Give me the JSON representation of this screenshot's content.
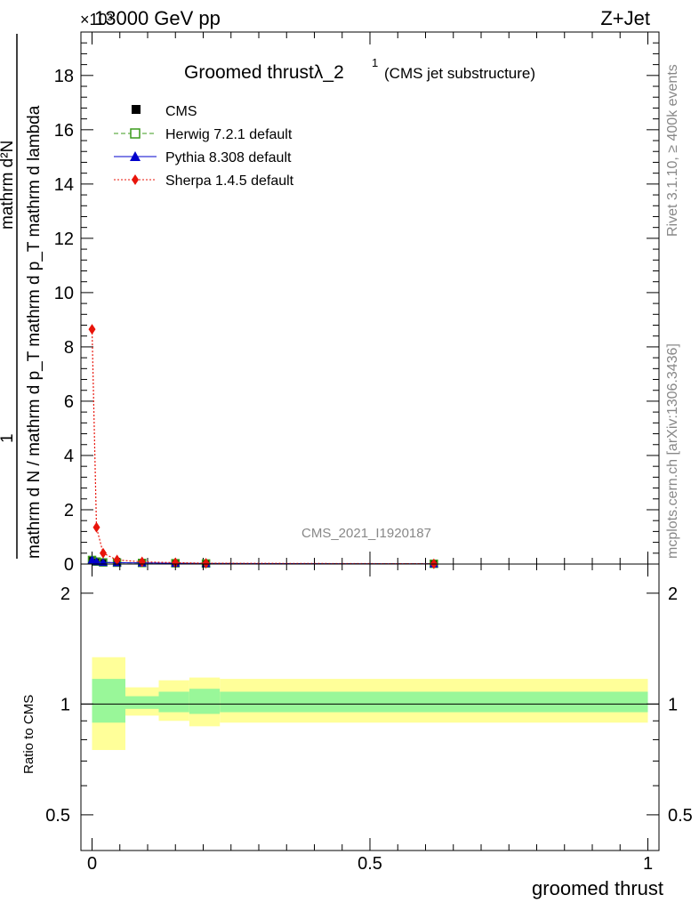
{
  "header": {
    "energy": "13000 GeV pp",
    "process": "Z+Jet",
    "exponent": "×10³"
  },
  "side_labels": {
    "rivet": "Rivet 3.1.10, ≥ 400k events",
    "mcplots": "mcplots.cern.ch [arXiv:1306.3436]"
  },
  "watermark": "CMS_2021_I1920187",
  "chart_data": [
    {
      "type": "line",
      "title": "Groomed thrustλ_2",
      "title_sup": "1",
      "subtitle": "(CMS jet substructure)",
      "ylabel_num": "1",
      "ylabel_den": "mathrm d N / mathrm d p_T mathrm d p_T mathrm d lambda",
      "ylabel_top": "mathrm d²N",
      "xlabel": "groomed thrust",
      "xlim": [
        -0.02,
        1.02
      ],
      "ylim": [
        0,
        19.6
      ],
      "y_unit_exponent": 3,
      "yticks": [
        0,
        2,
        4,
        6,
        8,
        10,
        12,
        14,
        16,
        18
      ],
      "legend": [
        {
          "name": "CMS",
          "color": "#000000",
          "style": "points",
          "marker": "square"
        },
        {
          "name": "Herwig 7.2.1 default",
          "color": "#3c9b1c",
          "style": "dashed",
          "marker": "open-square"
        },
        {
          "name": "Pythia 8.308 default",
          "color": "#0000cc",
          "style": "solid",
          "marker": "triangle"
        },
        {
          "name": "Sherpa 1.4.5 default",
          "color": "#e8140a",
          "style": "dotted",
          "marker": "diamond"
        }
      ],
      "series": [
        {
          "name": "CMS",
          "x": [
            0.0,
            0.008,
            0.02,
            0.045,
            0.09,
            0.15,
            0.205,
            0.615
          ],
          "y": [
            0.15,
            0.09,
            0.06,
            0.05,
            0.04,
            0.03,
            0.02,
            0.01
          ]
        },
        {
          "name": "Herwig 7.2.1 default",
          "x": [
            0.0,
            0.008,
            0.02,
            0.045,
            0.09,
            0.15,
            0.205,
            0.615
          ],
          "y": [
            0.15,
            0.09,
            0.06,
            0.05,
            0.04,
            0.03,
            0.02,
            0.01
          ]
        },
        {
          "name": "Pythia 8.308 default",
          "x": [
            0.0,
            0.008,
            0.02,
            0.045,
            0.09,
            0.15,
            0.205,
            0.615
          ],
          "y": [
            0.15,
            0.09,
            0.06,
            0.05,
            0.04,
            0.03,
            0.02,
            0.01
          ]
        },
        {
          "name": "Sherpa 1.4.5 default",
          "x": [
            0.0,
            0.008,
            0.02,
            0.045,
            0.09,
            0.15,
            0.205,
            0.615
          ],
          "y": [
            8.65,
            1.35,
            0.4,
            0.15,
            0.08,
            0.05,
            0.03,
            0.01
          ]
        }
      ]
    },
    {
      "type": "area",
      "ylabel": "Ratio to CMS",
      "xlim": [
        -0.02,
        1.02
      ],
      "ylim": [
        0.4,
        2.4
      ],
      "yticks": [
        0.5,
        1,
        2
      ],
      "ytick_labels": [
        "0.5",
        "1",
        "2"
      ],
      "xticks": [
        0,
        0.5,
        1
      ],
      "xtick_labels": [
        "0",
        "0.5",
        "1"
      ],
      "bands": [
        {
          "x0": 0.0,
          "x1": 0.06,
          "stat_lo": 0.89,
          "stat_hi": 1.17,
          "tot_lo": 0.75,
          "tot_hi": 1.34
        },
        {
          "x0": 0.06,
          "x1": 0.12,
          "stat_lo": 0.97,
          "stat_hi": 1.05,
          "tot_lo": 0.93,
          "tot_hi": 1.11
        },
        {
          "x0": 0.12,
          "x1": 0.175,
          "stat_lo": 0.95,
          "stat_hi": 1.08,
          "tot_lo": 0.9,
          "tot_hi": 1.16
        },
        {
          "x0": 0.175,
          "x1": 0.23,
          "stat_lo": 0.94,
          "stat_hi": 1.1,
          "tot_lo": 0.87,
          "tot_hi": 1.18
        },
        {
          "x0": 0.23,
          "x1": 1.0,
          "stat_lo": 0.95,
          "stat_hi": 1.08,
          "tot_lo": 0.89,
          "tot_hi": 1.17
        }
      ],
      "stat_color": "#99f799",
      "total_color": "#ffff99"
    }
  ]
}
